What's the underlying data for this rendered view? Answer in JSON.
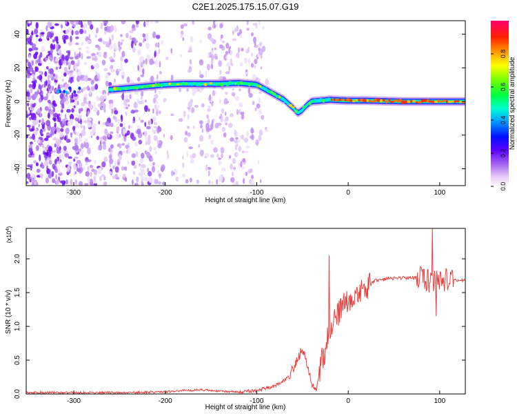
{
  "figure": {
    "title": "C2E1.2025.175.15.07.G19"
  },
  "chart_data": [
    {
      "type": "heatmap",
      "xlabel": "Height of straight line (km)",
      "ylabel": "Frequency (Hz)",
      "xlim": [
        -352,
        128
      ],
      "ylim": [
        -50,
        48
      ],
      "x_ticks": [
        -300,
        -200,
        -100,
        0,
        100
      ],
      "y_ticks": [
        -40,
        -20,
        0,
        20,
        40
      ],
      "colorbar": {
        "label": "Normalized spectral amplitude",
        "range": [
          0,
          1
        ],
        "ticks": [
          0.0,
          0.2,
          0.4,
          0.6,
          0.8
        ]
      },
      "ridge": {
        "x": [
          -300,
          -260,
          -240,
          -220,
          -200,
          -180,
          -160,
          -140,
          -120,
          -100,
          -90,
          -80,
          -70,
          -60,
          -55,
          -50,
          -45,
          -40,
          -30,
          -20,
          0,
          20,
          60,
          100,
          128
        ],
        "y": [
          6,
          7,
          8,
          9,
          10,
          10.5,
          10.5,
          10.5,
          11,
          10,
          7,
          4,
          1,
          -4,
          -7,
          -5,
          -2,
          0,
          0.5,
          1,
          0.5,
          0.5,
          0,
          0,
          0
        ]
      },
      "grid": false
    },
    {
      "type": "line",
      "xlabel": "Height of straight line (km)",
      "ylabel": "SNR (10 * v/v)",
      "y_multiplier": "(x10",
      "y_multiplier_exp": "4",
      "y_multiplier_close": ")",
      "xlim": [
        -352,
        128
      ],
      "ylim": [
        0,
        2.45
      ],
      "x_ticks": [
        -300,
        -200,
        -100,
        0,
        100
      ],
      "y_ticks": [
        "0.0",
        "0.5",
        "1.0",
        "1.5",
        "2.0"
      ],
      "series": [
        {
          "color": "#e8403e",
          "x": [
            -352,
            -300,
            -250,
            -200,
            -180,
            -160,
            -140,
            -120,
            -100,
            -80,
            -70,
            -60,
            -55,
            -50,
            -45,
            -40,
            -35,
            -30,
            -25,
            -20,
            -15,
            -10,
            -5,
            0,
            10,
            20,
            30,
            40,
            60,
            80,
            90,
            100,
            110,
            128
          ],
          "y": [
            0.02,
            0.02,
            0.02,
            0.03,
            0.05,
            0.06,
            0.04,
            0.03,
            0.05,
            0.12,
            0.2,
            0.35,
            0.55,
            0.62,
            0.45,
            0.15,
            0.05,
            0.45,
            0.62,
            1.0,
            1.1,
            1.2,
            1.3,
            1.35,
            1.45,
            1.58,
            1.68,
            1.7,
            1.72,
            1.72,
            1.65,
            1.7,
            1.68,
            1.68
          ]
        }
      ],
      "grid": false
    }
  ]
}
